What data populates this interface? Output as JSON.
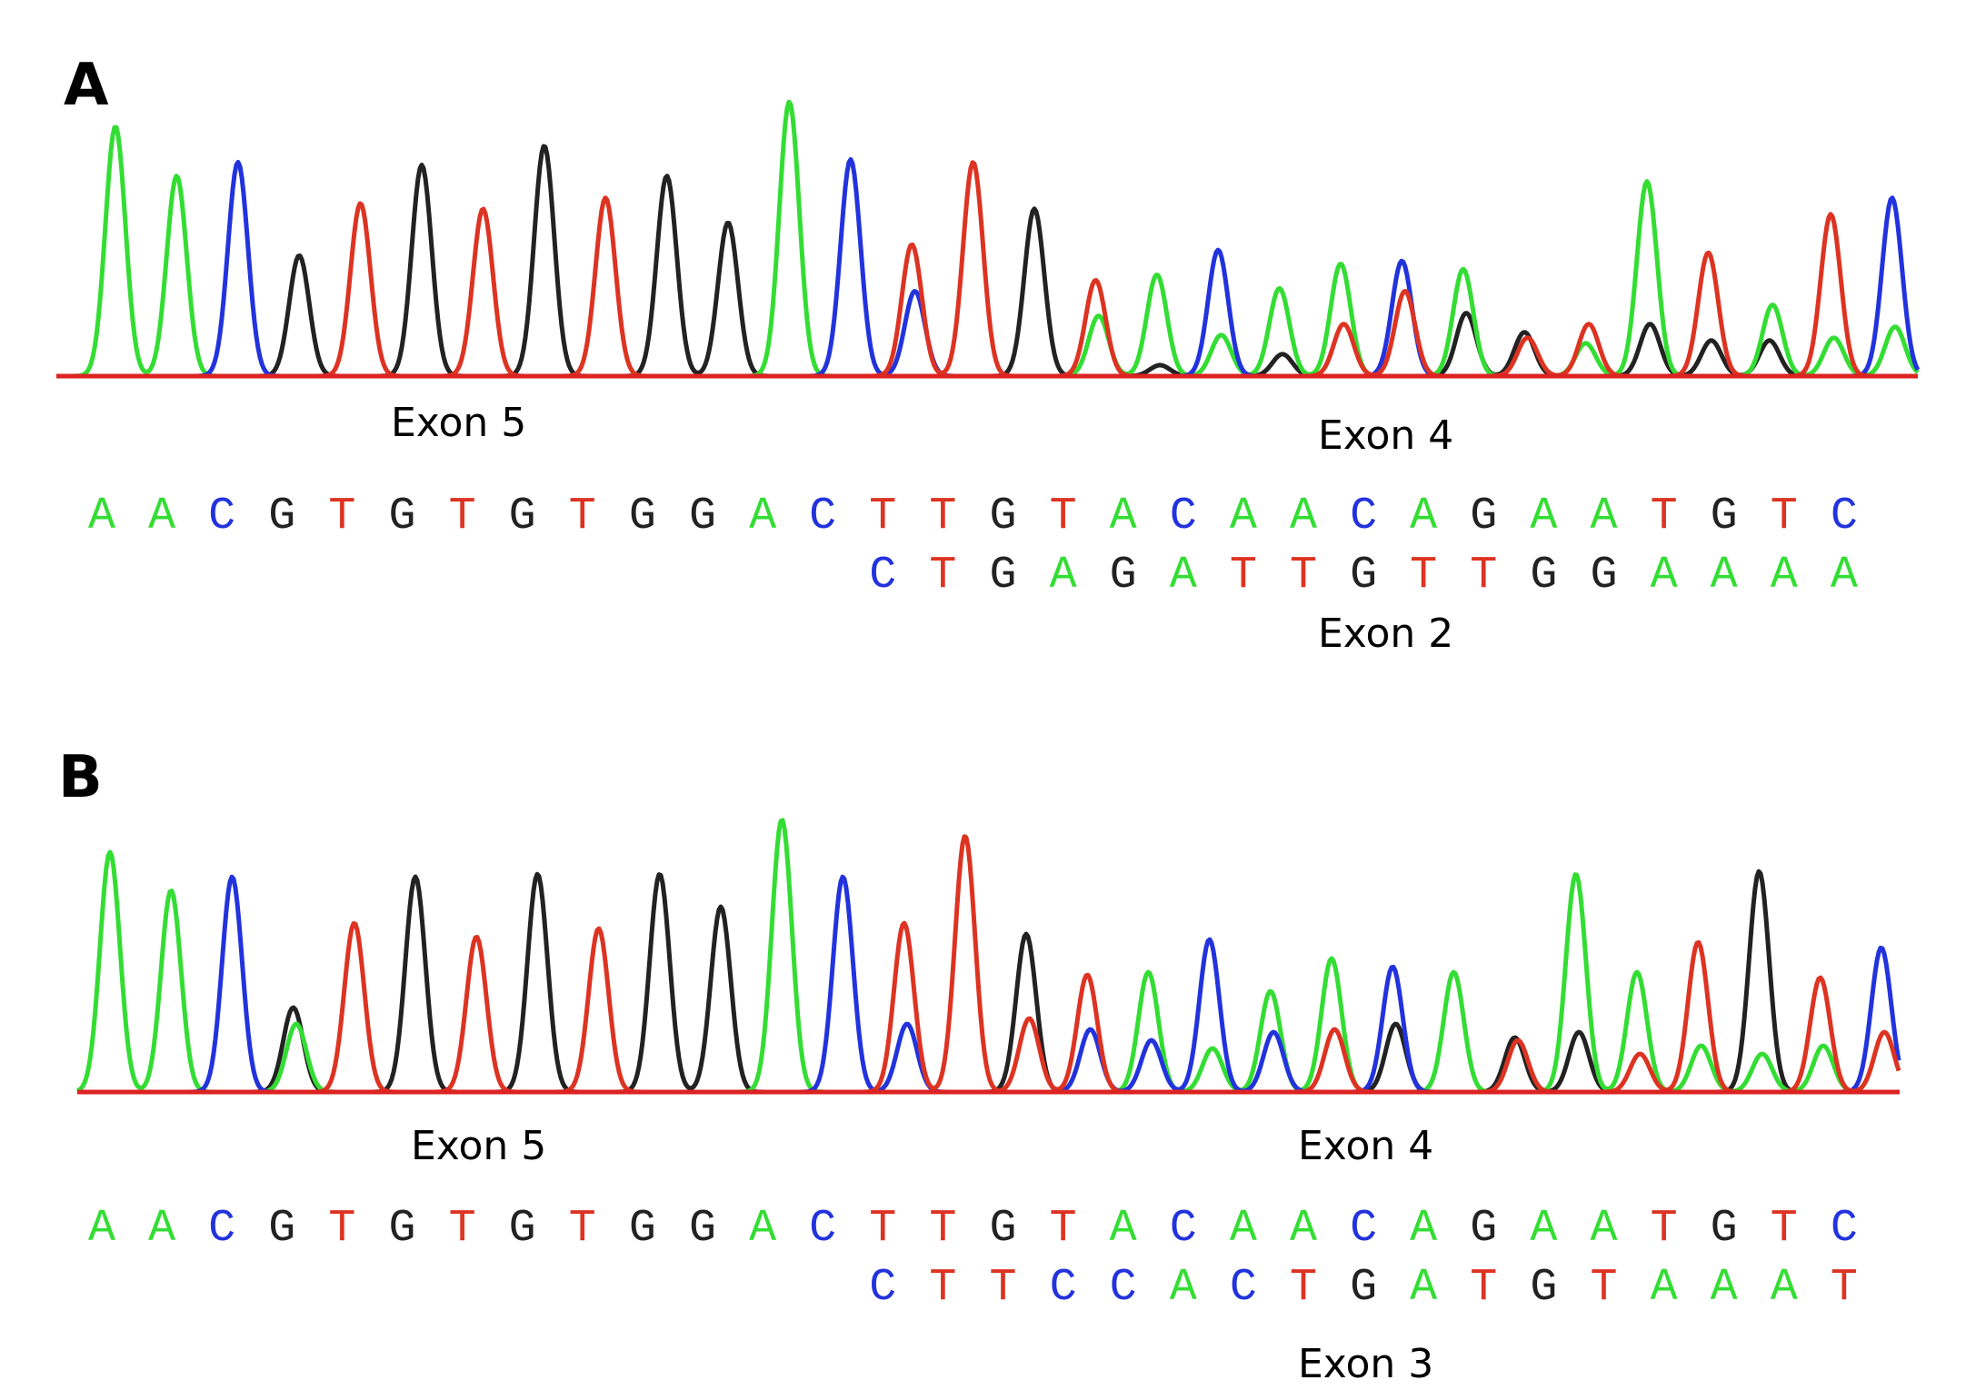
{
  "colors": {
    "A": "#33dd33",
    "C": "#2233dd",
    "G": "#222222",
    "T": "#dd3322",
    "baseline": "#dd2222"
  },
  "panels": [
    {
      "letter": "A",
      "exon_labels": {
        "top_left": "Exon 5",
        "top_right": "Exon 4",
        "bottom_right": "Exon 2"
      },
      "sequence_main": "AACGTGTGTGGACTTGTACAACAGAATGTC",
      "sequence_alt": "CTGAGATTGTTGGAAAA",
      "peaks": [
        {
          "base": "A",
          "h": 0.91
        },
        {
          "base": "A",
          "h": 0.73
        },
        {
          "base": "C",
          "h": 0.78
        },
        {
          "base": "G",
          "h": 0.44
        },
        {
          "base": "T",
          "h": 0.63
        },
        {
          "base": "G",
          "h": 0.77
        },
        {
          "base": "T",
          "h": 0.61
        },
        {
          "base": "G",
          "h": 0.84
        },
        {
          "base": "T",
          "h": 0.65
        },
        {
          "base": "G",
          "h": 0.73
        },
        {
          "base": "G",
          "h": 0.56
        },
        {
          "base": "A",
          "h": 1.0
        },
        {
          "base": "C",
          "h": 0.79
        },
        {
          "base": "T",
          "h": 0.48,
          "alt": "C",
          "alt_h": 0.31
        },
        {
          "base": "T",
          "h": 0.78
        },
        {
          "base": "G",
          "h": 0.61
        },
        {
          "base": "T",
          "h": 0.35,
          "alt": "A",
          "alt_h": 0.22
        },
        {
          "base": "A",
          "h": 0.37,
          "alt": "G",
          "alt_h": 0.04
        },
        {
          "base": "C",
          "h": 0.46,
          "alt": "A",
          "alt_h": 0.15
        },
        {
          "base": "A",
          "h": 0.32,
          "alt": "G",
          "alt_h": 0.08
        },
        {
          "base": "A",
          "h": 0.41,
          "alt": "T",
          "alt_h": 0.19
        },
        {
          "base": "C",
          "h": 0.42,
          "alt": "T",
          "alt_h": 0.31
        },
        {
          "base": "A",
          "h": 0.39,
          "alt": "G",
          "alt_h": 0.23
        },
        {
          "base": "G",
          "h": 0.16,
          "alt": "T",
          "alt_h": 0.14
        },
        {
          "base": "A",
          "h": 0.12,
          "alt": "T",
          "alt_h": 0.19
        },
        {
          "base": "A",
          "h": 0.71,
          "alt": "G",
          "alt_h": 0.19
        },
        {
          "base": "T",
          "h": 0.45,
          "alt": "G",
          "alt_h": 0.13
        },
        {
          "base": "G",
          "h": 0.13,
          "alt": "A",
          "alt_h": 0.26
        },
        {
          "base": "T",
          "h": 0.59,
          "alt": "A",
          "alt_h": 0.14
        },
        {
          "base": "C",
          "h": 0.65,
          "alt": "A",
          "alt_h": 0.18
        }
      ]
    },
    {
      "letter": "B",
      "exon_labels": {
        "top_left": "Exon 5",
        "top_right": "Exon 4",
        "bottom_right": "Exon 3"
      },
      "sequence_main": "AACGTGTGTGGACTTGTACAACAGAATGTC",
      "sequence_alt": "CTTCCACTGATGTAAAT",
      "peaks": [
        {
          "base": "A",
          "h": 0.88
        },
        {
          "base": "A",
          "h": 0.74
        },
        {
          "base": "C",
          "h": 0.79
        },
        {
          "base": "G",
          "h": 0.31,
          "alt": "A",
          "alt_h": 0.25
        },
        {
          "base": "T",
          "h": 0.62
        },
        {
          "base": "G",
          "h": 0.79
        },
        {
          "base": "T",
          "h": 0.57
        },
        {
          "base": "G",
          "h": 0.8
        },
        {
          "base": "T",
          "h": 0.6
        },
        {
          "base": "G",
          "h": 0.8
        },
        {
          "base": "G",
          "h": 0.68
        },
        {
          "base": "A",
          "h": 1.0
        },
        {
          "base": "C",
          "h": 0.79
        },
        {
          "base": "T",
          "h": 0.62,
          "alt": "C",
          "alt_h": 0.25
        },
        {
          "base": "T",
          "h": 0.94
        },
        {
          "base": "G",
          "h": 0.58,
          "alt": "T",
          "alt_h": 0.27
        },
        {
          "base": "T",
          "h": 0.43,
          "alt": "C",
          "alt_h": 0.23
        },
        {
          "base": "A",
          "h": 0.44,
          "alt": "C",
          "alt_h": 0.19
        },
        {
          "base": "C",
          "h": 0.56,
          "alt": "A",
          "alt_h": 0.16
        },
        {
          "base": "A",
          "h": 0.37,
          "alt": "C",
          "alt_h": 0.22
        },
        {
          "base": "A",
          "h": 0.49,
          "alt": "T",
          "alt_h": 0.23
        },
        {
          "base": "C",
          "h": 0.46,
          "alt": "G",
          "alt_h": 0.25
        },
        {
          "base": "A",
          "h": 0.44
        },
        {
          "base": "G",
          "h": 0.2,
          "alt": "T",
          "alt_h": 0.19
        },
        {
          "base": "A",
          "h": 0.8,
          "alt": "G",
          "alt_h": 0.22
        },
        {
          "base": "A",
          "h": 0.44,
          "alt": "T",
          "alt_h": 0.14
        },
        {
          "base": "T",
          "h": 0.55,
          "alt": "A",
          "alt_h": 0.17
        },
        {
          "base": "G",
          "h": 0.81,
          "alt": "A",
          "alt_h": 0.14
        },
        {
          "base": "T",
          "h": 0.42,
          "alt": "A",
          "alt_h": 0.17
        },
        {
          "base": "C",
          "h": 0.53,
          "alt": "T",
          "alt_h": 0.22
        }
      ]
    }
  ]
}
